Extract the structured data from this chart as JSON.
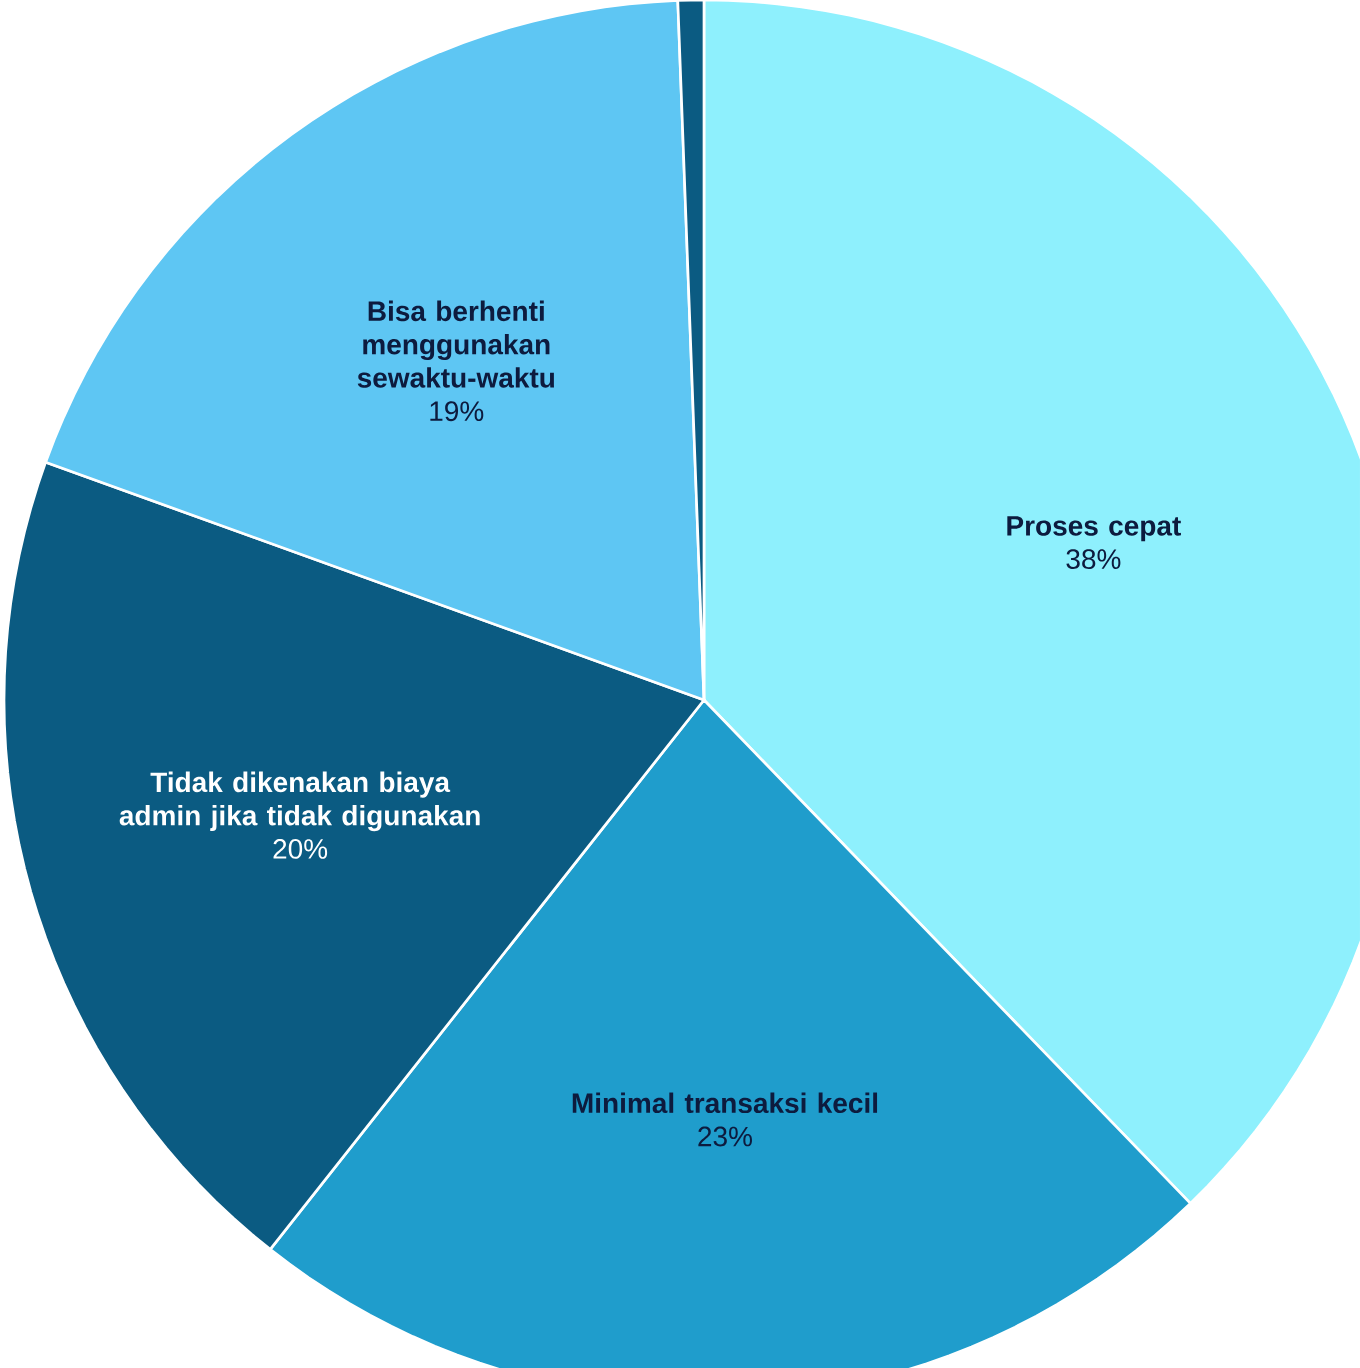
{
  "chart_data": {
    "type": "pie",
    "categories": [
      "Proses cepat",
      "Minimal transaksi kecil",
      "Tidak dikenakan biaya admin jika tidak digunakan",
      "Bisa berhenti menggunakan sewaktu-waktu",
      null
    ],
    "values": [
      38,
      23,
      20,
      19,
      0.6
    ],
    "value_labels": [
      "38%",
      "23%",
      "20%",
      "19%",
      null
    ],
    "colors": [
      "#8ef0fd",
      "#1f9dcc",
      "#0b5b82",
      "#5ec6f3",
      "#0b5b82"
    ]
  }
}
